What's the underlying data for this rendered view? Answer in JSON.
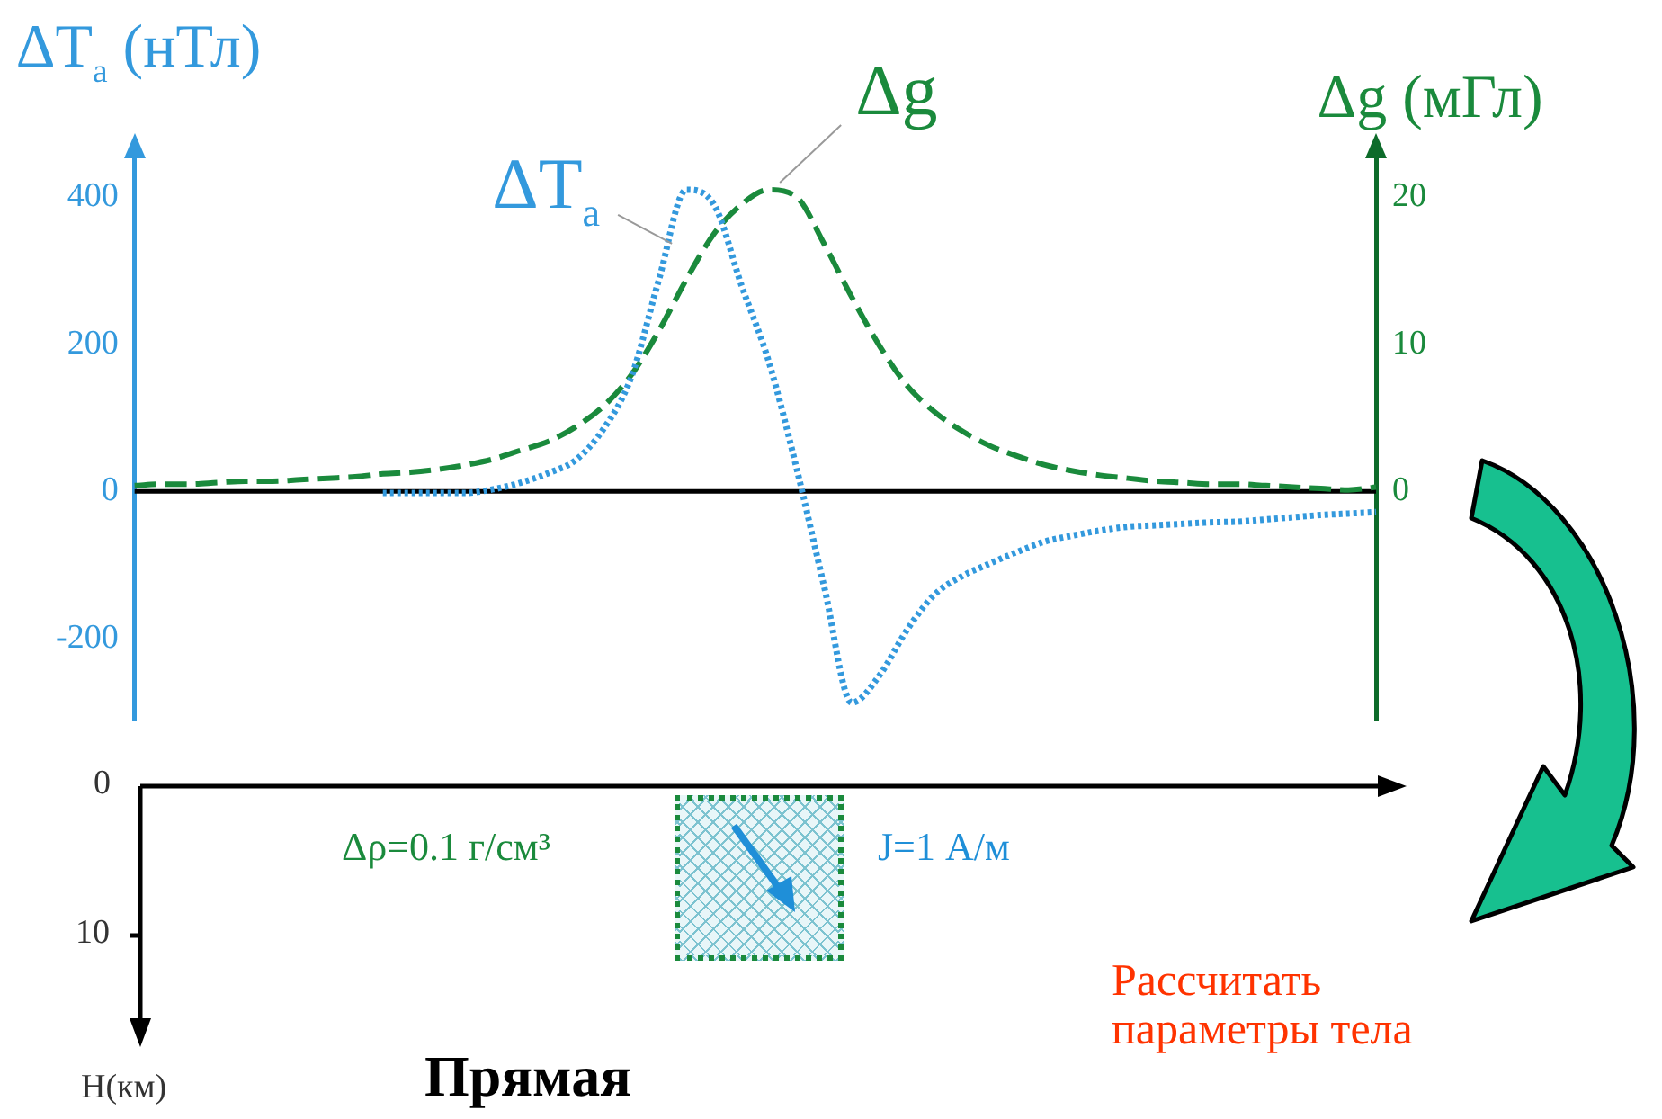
{
  "chart_data": [
    {
      "type": "line",
      "ylabel": "ΔT$_{a}$ (нТл)",
      "y2label": "Δg (мГл)",
      "categories": [
        null,
        null,
        null,
        null,
        null,
        null,
        null,
        null,
        null,
        null,
        null,
        null,
        null,
        null,
        null,
        null,
        null,
        null,
        null,
        null,
        null,
        null,
        null,
        null,
        null,
        null,
        null,
        null,
        null,
        null,
        null,
        null,
        null,
        null,
        null,
        null,
        null,
        null,
        null,
        null,
        null,
        null,
        null,
        null,
        null,
        null
      ],
      "ylim": [
        -310,
        460
      ],
      "yticks": [
        -200,
        0,
        200,
        400
      ],
      "y2lim": [
        -15.5,
        23
      ],
      "y2ticks": [
        0,
        10,
        20
      ],
      "ref_lines": [
        {
          "axis": "y",
          "value": 0,
          "color": "#000000"
        }
      ],
      "series": [
        {
          "name": "ΔT$_{a}$",
          "color": "#3399dd",
          "line_style": "dotted",
          "values": [
            null,
            null,
            null,
            null,
            null,
            null,
            null,
            null,
            null,
            -2,
            -2,
            -2,
            -2,
            3,
            12,
            25,
            43,
            85,
            155,
            287,
            410,
            390,
            280,
            175,
            31,
            -130,
            -287,
            -250,
            -188,
            -140,
            -115,
            -98,
            -82,
            -68,
            -60,
            -53,
            -48,
            -46,
            -44,
            -42,
            -41,
            -38,
            -35,
            -32,
            -30,
            -28
          ]
        },
        {
          "name": "Δg",
          "color": "#1a8a3c",
          "line_style": "dashed",
          "axis": "y2",
          "values": [
            0.4,
            0.5,
            0.5,
            0.6,
            0.7,
            0.7,
            0.8,
            0.9,
            1.0,
            1.2,
            1.3,
            1.5,
            1.8,
            2.2,
            2.8,
            3.4,
            4.4,
            5.8,
            7.9,
            10.9,
            14.4,
            17.5,
            19.5,
            20.5,
            20.0,
            16.8,
            13.2,
            9.9,
            7.2,
            5.4,
            4.1,
            3.1,
            2.4,
            1.8,
            1.4,
            1.1,
            0.9,
            0.7,
            0.6,
            0.5,
            0.5,
            0.4,
            0.3,
            0.2,
            0.1,
            0.3
          ]
        }
      ]
    },
    {
      "type": "other",
      "annotations": [
        "Δρ=0.1 г/см³",
        "J=1 А/м",
        "Рассчитать параметры тела",
        "Прямая",
        "0",
        "10",
        "H(км)"
      ]
    }
  ]
}
